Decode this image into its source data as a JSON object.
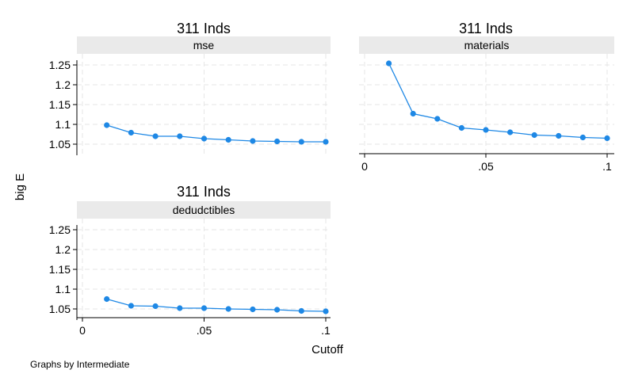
{
  "figure": {
    "ylabel": "big E",
    "xlabel": "Cutoff",
    "note": "Graphs by Intermediate"
  },
  "colors": {
    "series": "#1e88e5",
    "strip": "#eaeaea",
    "grid": "#e6e6e6",
    "axis": "#000000"
  },
  "chart_data": [
    {
      "type": "line",
      "title": "311 Inds",
      "subtitle": "mse",
      "x": [
        0.01,
        0.02,
        0.03,
        0.04,
        0.05,
        0.06,
        0.07,
        0.08,
        0.09,
        0.1
      ],
      "y": [
        1.098,
        1.079,
        1.07,
        1.07,
        1.064,
        1.061,
        1.058,
        1.057,
        1.056,
        1.056
      ],
      "xlim": [
        0,
        0.1
      ],
      "ylim": [
        1.05,
        1.25
      ],
      "yticks": [
        "1.05",
        "1.1",
        "1.15",
        "1.2",
        "1.25"
      ],
      "xticks": [],
      "grid": true
    },
    {
      "type": "line",
      "title": "311 Inds",
      "subtitle": "materials",
      "x": [
        0.01,
        0.02,
        0.03,
        0.04,
        0.05,
        0.06,
        0.07,
        0.08,
        0.09,
        0.1
      ],
      "y": [
        1.254,
        1.127,
        1.114,
        1.091,
        1.086,
        1.08,
        1.073,
        1.071,
        1.067,
        1.065
      ],
      "xlim": [
        0,
        0.1
      ],
      "ylim": [
        1.05,
        1.25
      ],
      "yticks": [],
      "xticks": [
        "0",
        ".05",
        ".1"
      ],
      "grid": true
    },
    {
      "type": "line",
      "title": "311 Inds",
      "subtitle": "dedudctibles",
      "x": [
        0.01,
        0.02,
        0.03,
        0.04,
        0.05,
        0.06,
        0.07,
        0.08,
        0.09,
        0.1
      ],
      "y": [
        1.075,
        1.058,
        1.057,
        1.052,
        1.052,
        1.05,
        1.049,
        1.048,
        1.045,
        1.044
      ],
      "xlim": [
        0,
        0.1
      ],
      "ylim": [
        1.05,
        1.25
      ],
      "yticks": [
        "1.05",
        "1.1",
        "1.15",
        "1.2",
        "1.25"
      ],
      "xticks": [
        "0",
        ".05",
        ".1"
      ],
      "grid": true
    }
  ]
}
